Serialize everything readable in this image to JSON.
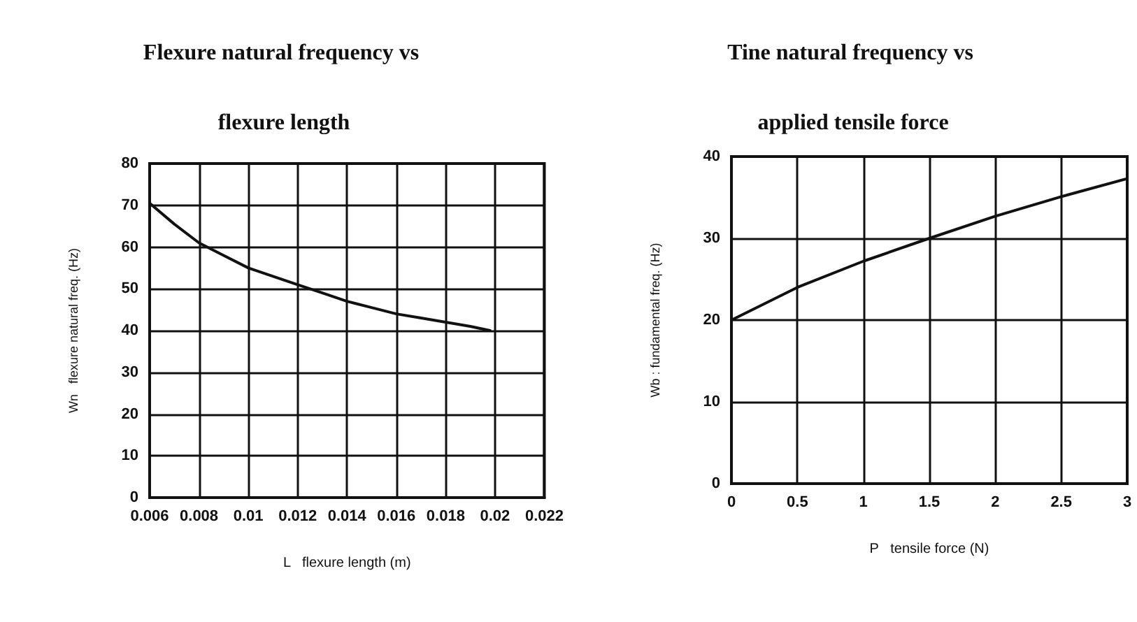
{
  "chart_data": [
    {
      "type": "line",
      "title": "Flexure natural frequency vs flexure length",
      "xlabel": "L   flexure length (m)",
      "ylabel": "Wn   flexure natural freq. (Hz)",
      "x": [
        0.006,
        0.007,
        0.008,
        0.009,
        0.01,
        0.011,
        0.012,
        0.013,
        0.014,
        0.015,
        0.016,
        0.017,
        0.018,
        0.019,
        0.0198
      ],
      "series": [
        {
          "color": "#111111",
          "values": [
            70.5,
            65.5,
            61,
            58,
            55,
            53,
            51,
            49,
            47,
            45.5,
            44,
            43,
            42,
            41,
            40
          ]
        }
      ],
      "xlim": [
        0.006,
        0.022
      ],
      "xticks": [
        0.006,
        0.008,
        0.01,
        0.012,
        0.014,
        0.016,
        0.018,
        0.02,
        0.022
      ],
      "ylim": [
        0,
        80
      ],
      "yticks": [
        0,
        10,
        20,
        30,
        40,
        50,
        60,
        70,
        80
      ],
      "grid": true,
      "marker": "none",
      "line_style": "solid"
    },
    {
      "type": "line",
      "title": "Tine natural frequency vs applied tensile force",
      "xlabel": "P   tensile force (N)",
      "ylabel": "Wb : fundamental freq. (Hz)",
      "x": [
        0,
        0.5,
        1,
        1.5,
        2,
        2.5,
        3
      ],
      "series": [
        {
          "color": "#111111",
          "values": [
            20,
            24,
            27.2,
            30,
            32.7,
            35.1,
            37.3
          ]
        }
      ],
      "xlim": [
        0,
        3
      ],
      "xticks": [
        0,
        0.5,
        1,
        1.5,
        2,
        2.5,
        3
      ],
      "ylim": [
        0,
        40
      ],
      "yticks": [
        0,
        10,
        20,
        30,
        40
      ],
      "grid": true,
      "marker": "none",
      "line_style": "solid"
    }
  ]
}
